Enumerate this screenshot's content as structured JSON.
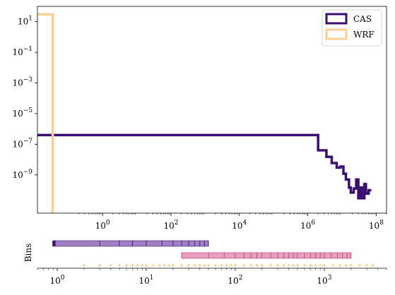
{
  "chart_data": [
    {
      "type": "histogram-step",
      "title": "",
      "xlabel": "",
      "ylabel": "",
      "xscale": "log",
      "yscale": "log",
      "xlim": [
        0.0125,
        200000000
      ],
      "ylim": [
        3.2e-12,
        100
      ],
      "xticks": [
        {
          "value": 1,
          "label": "10",
          "exp": "0"
        },
        {
          "value": 100,
          "label": "10",
          "exp": "2"
        },
        {
          "value": 10000,
          "label": "10",
          "exp": "4"
        },
        {
          "value": 1000000,
          "label": "10",
          "exp": "6"
        },
        {
          "value": 100000000,
          "label": "10",
          "exp": "8"
        }
      ],
      "yticks": [
        {
          "value": 10,
          "label": "10",
          "exp": "1"
        },
        {
          "value": 0.1,
          "label": "10",
          "exp": "−1"
        },
        {
          "value": 0.001,
          "label": "10",
          "exp": "−3"
        },
        {
          "value": 1e-05,
          "label": "10",
          "exp": "−5"
        },
        {
          "value": 1e-07,
          "label": "10",
          "exp": "−7"
        },
        {
          "value": 1e-09,
          "label": "10",
          "exp": "−9"
        }
      ],
      "legend_position": "top-right",
      "series": [
        {
          "name": "CAS",
          "color": "#3b0f70",
          "steps": [
            [
              0.0125,
              4e-07
            ],
            [
              2000000,
              4e-07
            ],
            [
              2000000,
              4e-08
            ],
            [
              3500000,
              4e-08
            ],
            [
              3500000,
              1.5e-08
            ],
            [
              5000000,
              1.5e-08
            ],
            [
              5000000,
              6e-09
            ],
            [
              7000000,
              6e-09
            ],
            [
              7000000,
              3e-09
            ],
            [
              9000000,
              3e-09
            ],
            [
              9000000,
              3.5e-09
            ],
            [
              11000000,
              3.5e-09
            ],
            [
              11000000,
              1.2e-09
            ],
            [
              13000000,
              1.2e-09
            ],
            [
              13000000,
              5e-10
            ],
            [
              16000000,
              5e-10
            ],
            [
              16000000,
              1.5e-10
            ],
            [
              18000000,
              1.5e-10
            ],
            [
              18000000,
              7e-11
            ],
            [
              22000000,
              7e-11
            ],
            [
              22000000,
              1.3e-10
            ],
            [
              26000000,
              1.3e-10
            ],
            [
              26000000,
              5e-10
            ],
            [
              30000000,
              5e-10
            ],
            [
              30000000,
              3e-11
            ],
            [
              34000000,
              3e-11
            ],
            [
              34000000,
              1.5e-10
            ],
            [
              38000000,
              1.5e-10
            ],
            [
              38000000,
              3e-11
            ],
            [
              45000000,
              3e-11
            ],
            [
              45000000,
              2.5e-10
            ],
            [
              50000000,
              2.5e-10
            ],
            [
              50000000,
              6e-11
            ],
            [
              60000000,
              6e-11
            ],
            [
              60000000,
              1e-10
            ],
            [
              72000000,
              1e-10
            ]
          ]
        },
        {
          "name": "WRF",
          "color": "#fecf92",
          "steps": [
            [
              0.0125,
              30
            ],
            [
              0.035,
              30
            ],
            [
              0.035,
              3.2e-12
            ]
          ]
        }
      ]
    },
    {
      "type": "bin-edges",
      "title": "",
      "ylabel": "Bins",
      "xscale": "log",
      "xlim": [
        0.6,
        5000
      ],
      "xticks": [
        {
          "value": 1,
          "label": "10",
          "exp": "0"
        },
        {
          "value": 10,
          "label": "10",
          "exp": "1"
        },
        {
          "value": 100,
          "label": "10",
          "exp": "2"
        },
        {
          "value": 1000,
          "label": "10",
          "exp": "3"
        }
      ],
      "rows": [
        {
          "color": "#8d6ab8",
          "edge_color": "#3b0f70",
          "range": [
            0.9,
            50
          ],
          "edges": [
            0.9,
            0.95,
            3,
            5,
            7,
            10,
            15,
            20,
            25,
            30,
            35,
            40,
            45,
            50
          ]
        },
        {
          "color": "#e28fb0",
          "edge_color": "#b73779",
          "range": [
            25,
            2000
          ],
          "edges": [
            25,
            50,
            75,
            100,
            125,
            150,
            175,
            200,
            250,
            300,
            350,
            400,
            450,
            500,
            600,
            700,
            800,
            900,
            1000,
            1200,
            1400,
            1600,
            1800,
            2000
          ]
        },
        {
          "color": "#fecf92",
          "dots": [
            2,
            3,
            4,
            5,
            6,
            7,
            8,
            9,
            10,
            12,
            14,
            16,
            18,
            20,
            25,
            30,
            35,
            40,
            45,
            50,
            60,
            70,
            80,
            90,
            100,
            125,
            150,
            175,
            200,
            250,
            300,
            350,
            400,
            450,
            500,
            600,
            700,
            800,
            900,
            1000,
            1250,
            1500,
            1750,
            2000,
            2500,
            3000,
            3500
          ]
        }
      ]
    }
  ],
  "legend": [
    {
      "label": "CAS",
      "color": "#3b0f70"
    },
    {
      "label": "WRF",
      "color": "#fecf92"
    }
  ]
}
